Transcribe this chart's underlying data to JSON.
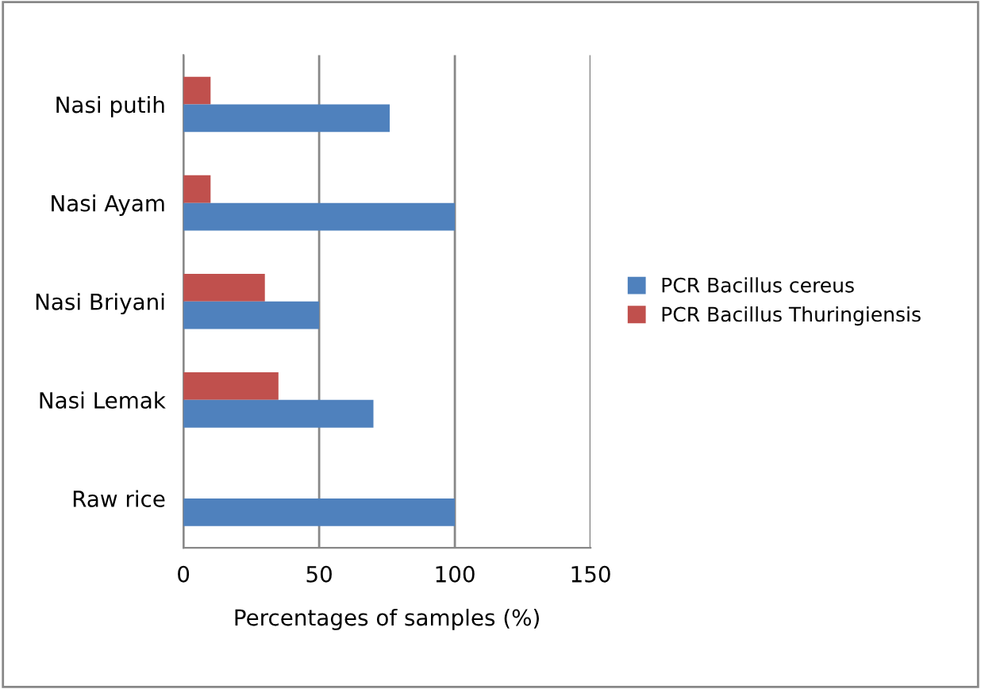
{
  "chart_data": {
    "type": "bar",
    "orientation": "horizontal",
    "xlabel": "Percentages of samples (%)",
    "categories": [
      "Nasi putih",
      "Nasi Ayam",
      "Nasi Briyani",
      "Nasi Lemak",
      "Raw rice"
    ],
    "series": [
      {
        "name": "PCR Bacillus Thuringiensis",
        "color": "#c0504d",
        "values": [
          10,
          10,
          30,
          35,
          0
        ]
      },
      {
        "name": "PCR Bacillus cereus",
        "color": "#4f81bd",
        "values": [
          76,
          100,
          50,
          70,
          100
        ]
      }
    ],
    "xlim": [
      0,
      150
    ],
    "xticks": [
      0,
      50,
      100,
      150
    ],
    "grid": "x",
    "legend": "right"
  }
}
